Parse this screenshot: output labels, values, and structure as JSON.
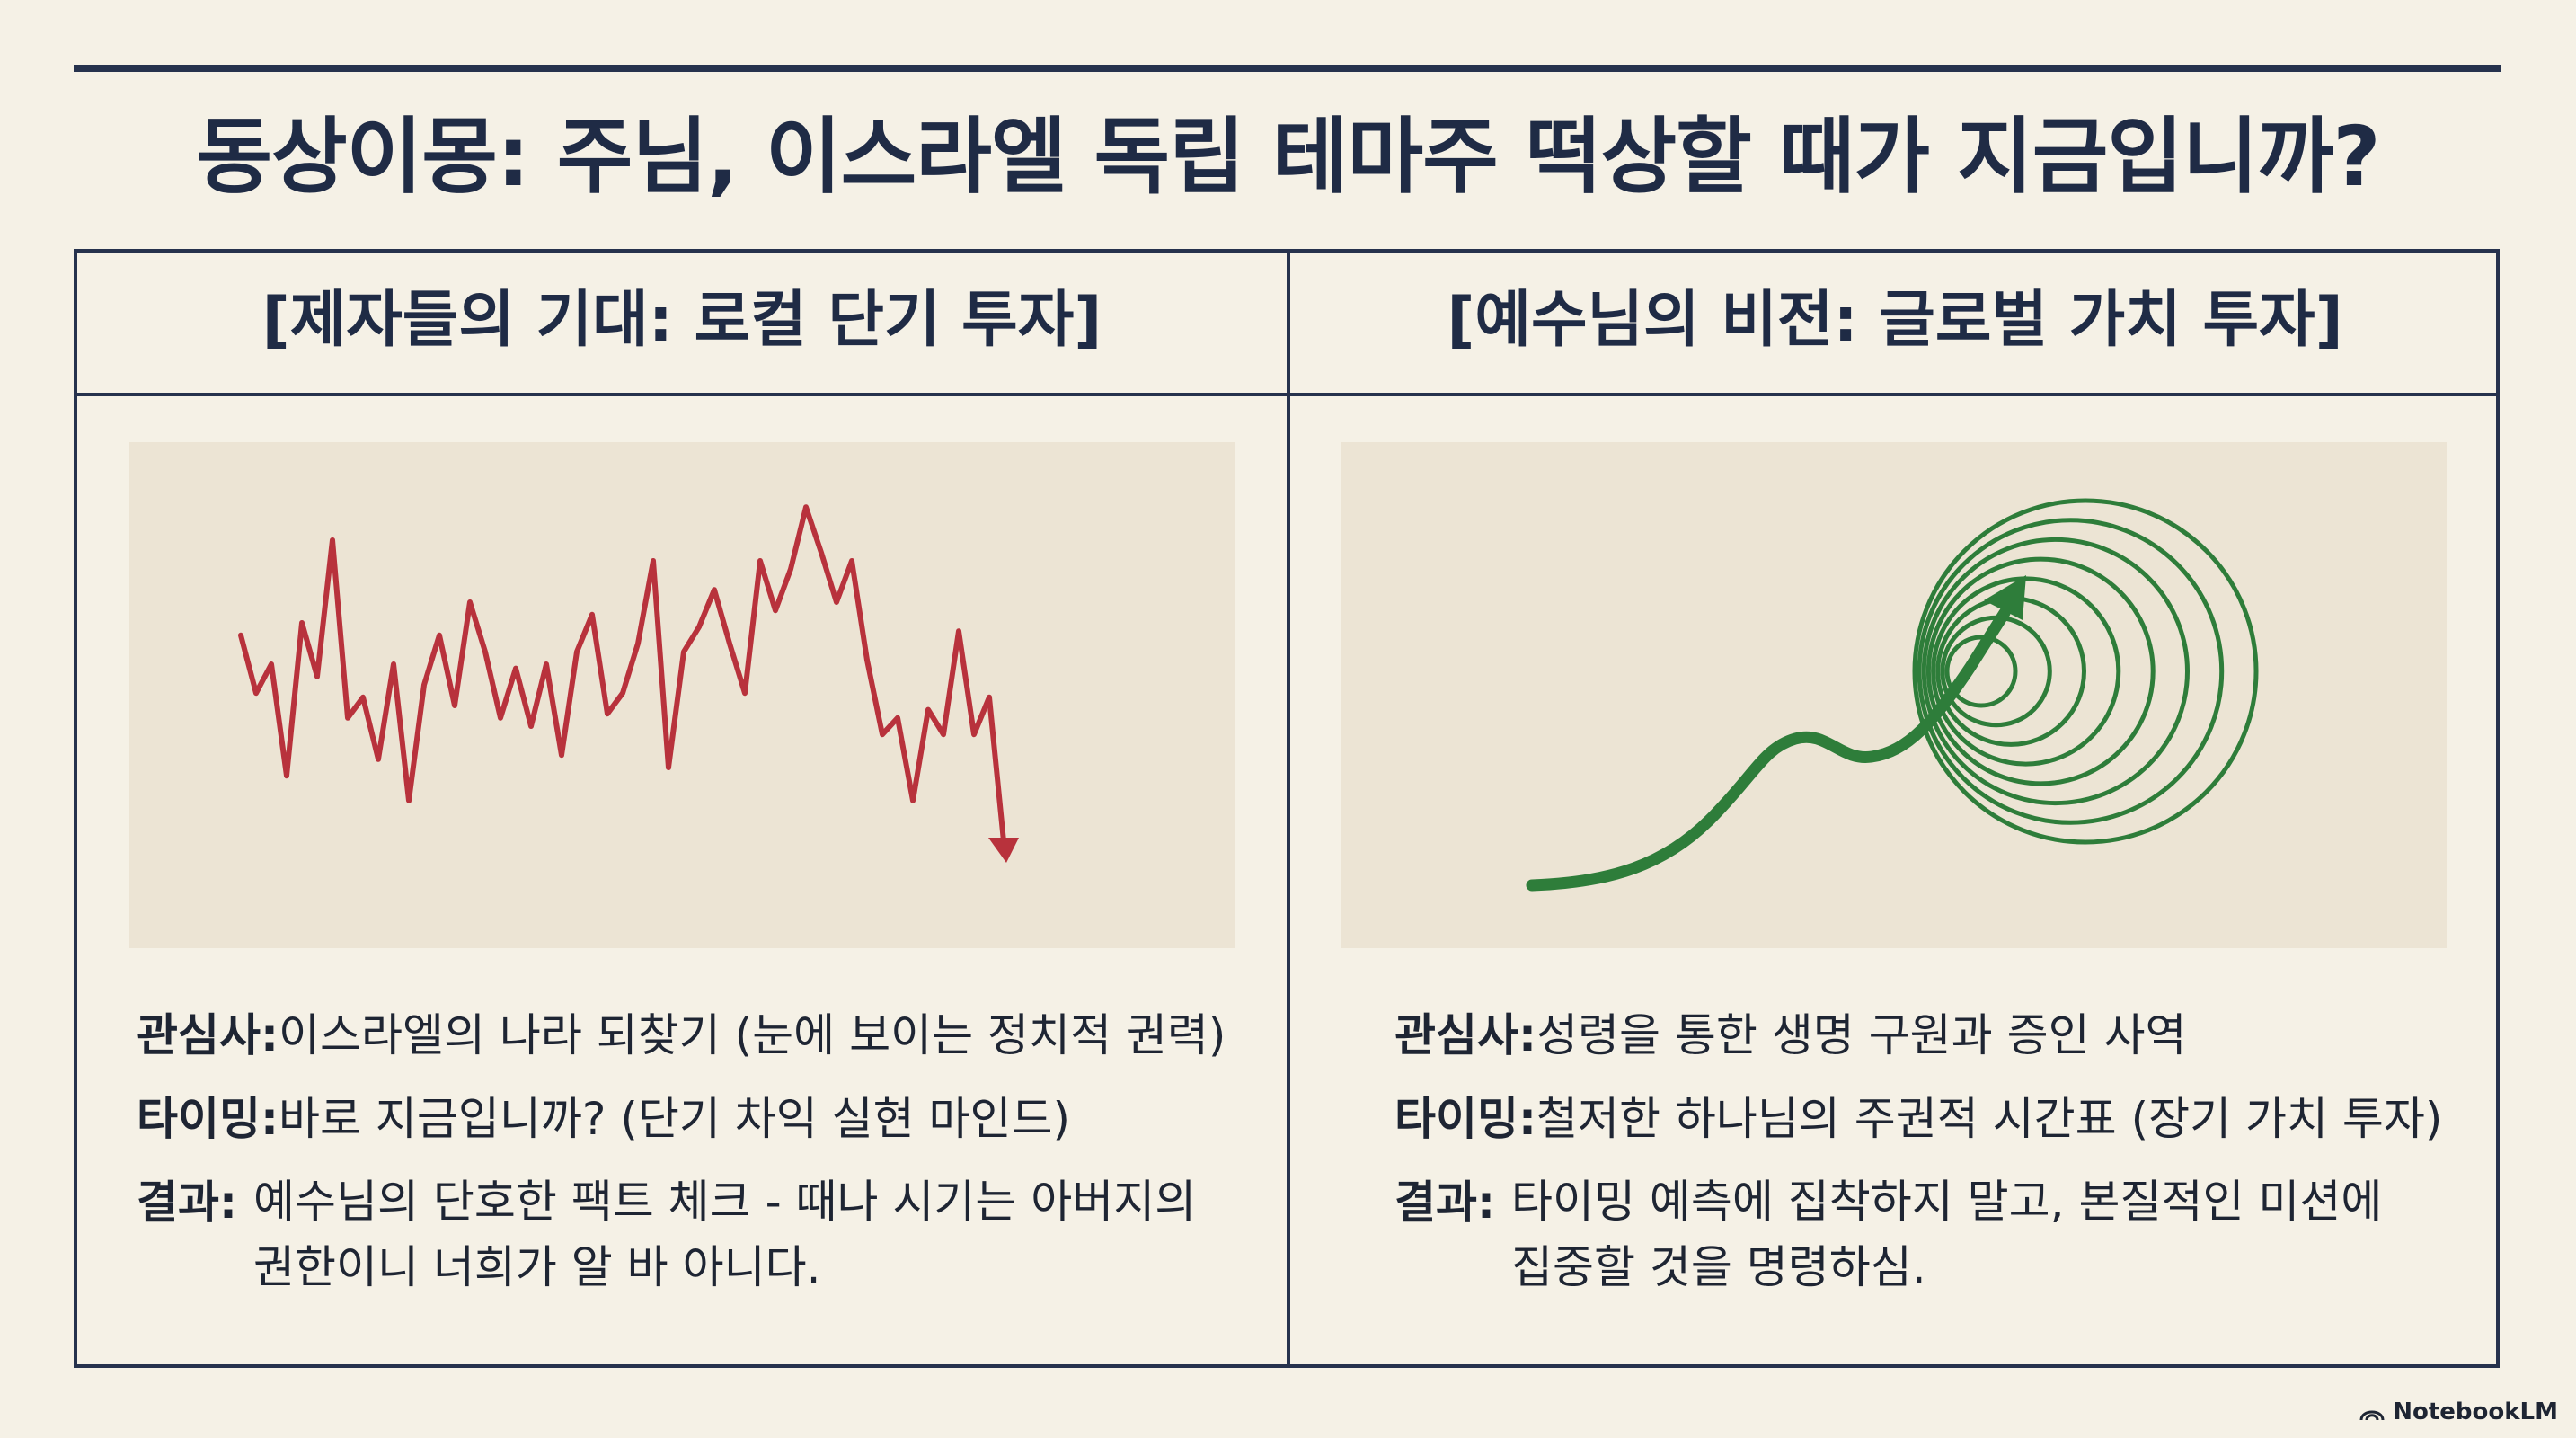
{
  "title": "동상이몽: 주님, 이스라엘 독립 테마주 떡상할 때가 지금입니까?",
  "left": {
    "heading": "[제자들의 기대: 로컬 단기 투자]",
    "rows": [
      {
        "label": "관심사:",
        "text": " 이스라엘의 나라 되찾기 (눈에 보이는 정치적 권력)"
      },
      {
        "label": "타이밍:",
        "text": " 바로 지금입니까? (단기 차익 실현 마인드)"
      },
      {
        "label": "결과:",
        "text": "예수님의 단호한 팩트 체크 - 때나 시기는 아버지의 권한이니 너희가 알 바 아니다."
      }
    ],
    "line_color": "#b8323c",
    "chart_data": {
      "type": "line",
      "trend": "volatile-down",
      "y": [
        62,
        48,
        55,
        28,
        65,
        52,
        85,
        42,
        47,
        32,
        55,
        22,
        50,
        62,
        45,
        70,
        58,
        42,
        54,
        40,
        55,
        33,
        58,
        67,
        43,
        48,
        60,
        80,
        30,
        58,
        64,
        73,
        60,
        48,
        80,
        68,
        78,
        93,
        82,
        70,
        80,
        56,
        38,
        42,
        22,
        44,
        38,
        63,
        38,
        47,
        10
      ],
      "end_marker": "arrow-down"
    }
  },
  "right": {
    "heading": "[예수님의 비전: 글로벌 가치 투자]",
    "rows": [
      {
        "label": "관심사:",
        "text": " 성령을 통한 생명 구원과 증인 사역"
      },
      {
        "label": "타이밍:",
        "text": " 철저한 하나님의 주권적 시간표 (장기 가치 투자)"
      },
      {
        "label": "결과:",
        "text": "타이밍 예측에 집착하지 말고, 본질적인 미션에 집중할 것을 명령하심."
      }
    ],
    "line_color": "#2e7d3a",
    "chart_data": {
      "type": "diagram",
      "shape": "rising-curve-into-concentric-circles",
      "rings": 8
    }
  },
  "brand": "NotebookLM"
}
